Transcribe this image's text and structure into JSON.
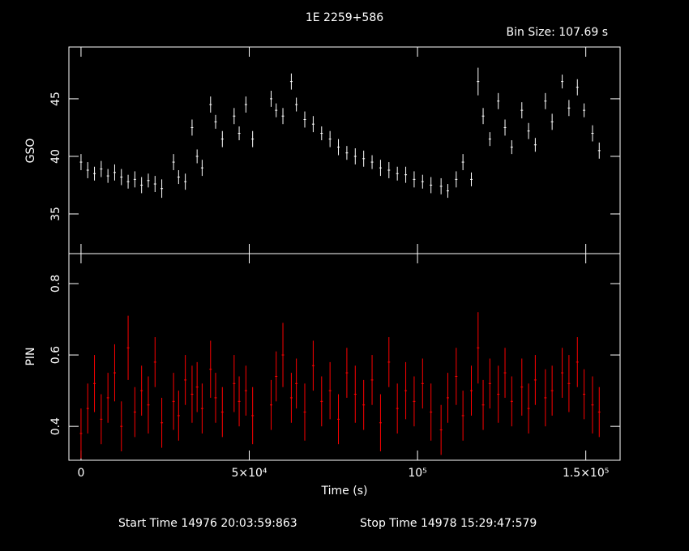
{
  "chart_data": [
    {
      "type": "errorbar",
      "title": "1E 2259+586",
      "subtitle": "Bin Size: 107.69 s",
      "ylabel": "GSO",
      "color": "#ffffff",
      "xlim": [
        -3600,
        160200
      ],
      "xticks": [
        0,
        50000,
        100000,
        150000
      ],
      "ylim": [
        31.55,
        49.5
      ],
      "yticks": [
        35,
        40,
        45
      ],
      "x": [
        0,
        2000,
        4000,
        6000,
        8000,
        10000,
        12000,
        14000,
        16000,
        18000,
        20000,
        22000,
        24000,
        27500,
        29000,
        31000,
        33000,
        34500,
        36000,
        38500,
        40000,
        42000,
        45500,
        47000,
        49000,
        51000,
        56500,
        58000,
        60000,
        62500,
        64000,
        66500,
        69000,
        71500,
        74000,
        76500,
        79000,
        81500,
        84000,
        86500,
        89000,
        91500,
        94000,
        96500,
        99000,
        101500,
        104000,
        107000,
        109000,
        111500,
        113500,
        116000,
        118000,
        119500,
        121500,
        124000,
        126000,
        128000,
        131000,
        133000,
        135000,
        138000,
        140000,
        143000,
        145000,
        147500,
        149500,
        152000,
        154000
      ],
      "values": [
        39.5,
        38.8,
        38.5,
        38.9,
        38.3,
        38.6,
        38.2,
        37.8,
        38.0,
        37.5,
        37.9,
        37.6,
        37.2,
        39.5,
        38.2,
        37.8,
        42.5,
        40.0,
        39.0,
        44.5,
        43.0,
        41.5,
        43.5,
        42.0,
        44.5,
        41.5,
        45.0,
        44.0,
        43.5,
        46.5,
        44.5,
        43.2,
        42.8,
        42.0,
        41.5,
        40.8,
        40.3,
        40.0,
        39.8,
        39.5,
        39.0,
        38.8,
        38.5,
        38.4,
        38.0,
        37.8,
        37.5,
        37.4,
        37.0,
        38.0,
        39.5,
        38.0,
        46.5,
        43.5,
        41.5,
        44.8,
        42.5,
        40.8,
        44.0,
        42.2,
        41.0,
        44.8,
        43.0,
        46.5,
        44.2,
        46.0,
        44.0,
        42.0,
        40.5
      ],
      "errors": [
        0.7,
        0.7,
        0.6,
        0.7,
        0.6,
        0.7,
        0.7,
        0.6,
        0.7,
        0.7,
        0.6,
        0.7,
        0.8,
        0.7,
        0.6,
        0.7,
        0.7,
        0.6,
        0.7,
        0.7,
        0.6,
        0.7,
        0.7,
        0.6,
        0.7,
        0.7,
        0.7,
        0.6,
        0.7,
        0.7,
        0.6,
        0.7,
        0.7,
        0.6,
        0.7,
        0.7,
        0.6,
        0.7,
        0.7,
        0.6,
        0.7,
        0.7,
        0.6,
        0.7,
        0.7,
        0.6,
        0.7,
        0.7,
        0.6,
        0.7,
        0.7,
        0.6,
        1.2,
        0.7,
        0.6,
        0.7,
        0.7,
        0.6,
        0.7,
        0.7,
        0.6,
        0.7,
        0.7,
        0.6,
        0.7,
        0.7,
        0.6,
        0.7,
        0.7
      ]
    },
    {
      "type": "errorbar",
      "ylabel": "PIN",
      "xlabel": "Time (s)",
      "color": "#ff0000",
      "xlim": [
        -3600,
        160200
      ],
      "xticks": [
        {
          "value": 0,
          "label": "0"
        },
        {
          "value": 50000,
          "label": "5×10⁴"
        },
        {
          "value": 100000,
          "label": "10⁵"
        },
        {
          "value": 150000,
          "label": "1.5×10⁵"
        }
      ],
      "ylim": [
        0.305,
        0.884
      ],
      "yticks": [
        0.4,
        0.6,
        0.8
      ],
      "x": [
        0,
        2000,
        4000,
        6000,
        8000,
        10000,
        12000,
        14000,
        16000,
        18000,
        20000,
        22000,
        24000,
        27500,
        29000,
        31000,
        33000,
        34500,
        36000,
        38500,
        40000,
        42000,
        45500,
        47000,
        49000,
        51000,
        56500,
        58000,
        60000,
        62500,
        64000,
        66500,
        69000,
        71500,
        74000,
        76500,
        79000,
        81500,
        84000,
        86500,
        89000,
        91500,
        94000,
        96500,
        99000,
        101500,
        104000,
        107000,
        109000,
        111500,
        113500,
        116000,
        118000,
        119500,
        121500,
        124000,
        126000,
        128000,
        131000,
        133000,
        135000,
        138000,
        140000,
        143000,
        145000,
        147500,
        149500,
        152000,
        154000
      ],
      "values": [
        0.38,
        0.45,
        0.52,
        0.42,
        0.48,
        0.55,
        0.4,
        0.62,
        0.44,
        0.5,
        0.46,
        0.58,
        0.41,
        0.47,
        0.43,
        0.53,
        0.49,
        0.51,
        0.45,
        0.56,
        0.48,
        0.44,
        0.52,
        0.47,
        0.5,
        0.43,
        0.46,
        0.54,
        0.6,
        0.48,
        0.52,
        0.44,
        0.57,
        0.47,
        0.5,
        0.42,
        0.55,
        0.49,
        0.46,
        0.53,
        0.41,
        0.58,
        0.45,
        0.5,
        0.47,
        0.52,
        0.44,
        0.39,
        0.48,
        0.54,
        0.43,
        0.5,
        0.62,
        0.46,
        0.52,
        0.49,
        0.55,
        0.47,
        0.51,
        0.45,
        0.53,
        0.48,
        0.5,
        0.55,
        0.52,
        0.58,
        0.49,
        0.46,
        0.44
      ],
      "errors": [
        0.07,
        0.07,
        0.08,
        0.07,
        0.07,
        0.08,
        0.07,
        0.09,
        0.07,
        0.07,
        0.08,
        0.07,
        0.07,
        0.08,
        0.07,
        0.07,
        0.08,
        0.07,
        0.07,
        0.08,
        0.07,
        0.07,
        0.08,
        0.07,
        0.07,
        0.08,
        0.07,
        0.07,
        0.09,
        0.07,
        0.07,
        0.08,
        0.07,
        0.07,
        0.08,
        0.07,
        0.07,
        0.08,
        0.07,
        0.07,
        0.08,
        0.07,
        0.07,
        0.08,
        0.07,
        0.07,
        0.08,
        0.07,
        0.07,
        0.08,
        0.07,
        0.07,
        0.1,
        0.07,
        0.07,
        0.08,
        0.07,
        0.07,
        0.08,
        0.07,
        0.07,
        0.08,
        0.07,
        0.07,
        0.08,
        0.07,
        0.07,
        0.08,
        0.07
      ]
    }
  ],
  "footer": {
    "start": "Start Time 14976 20:03:59:863",
    "stop": "Stop Time 14978 15:29:47:579"
  }
}
